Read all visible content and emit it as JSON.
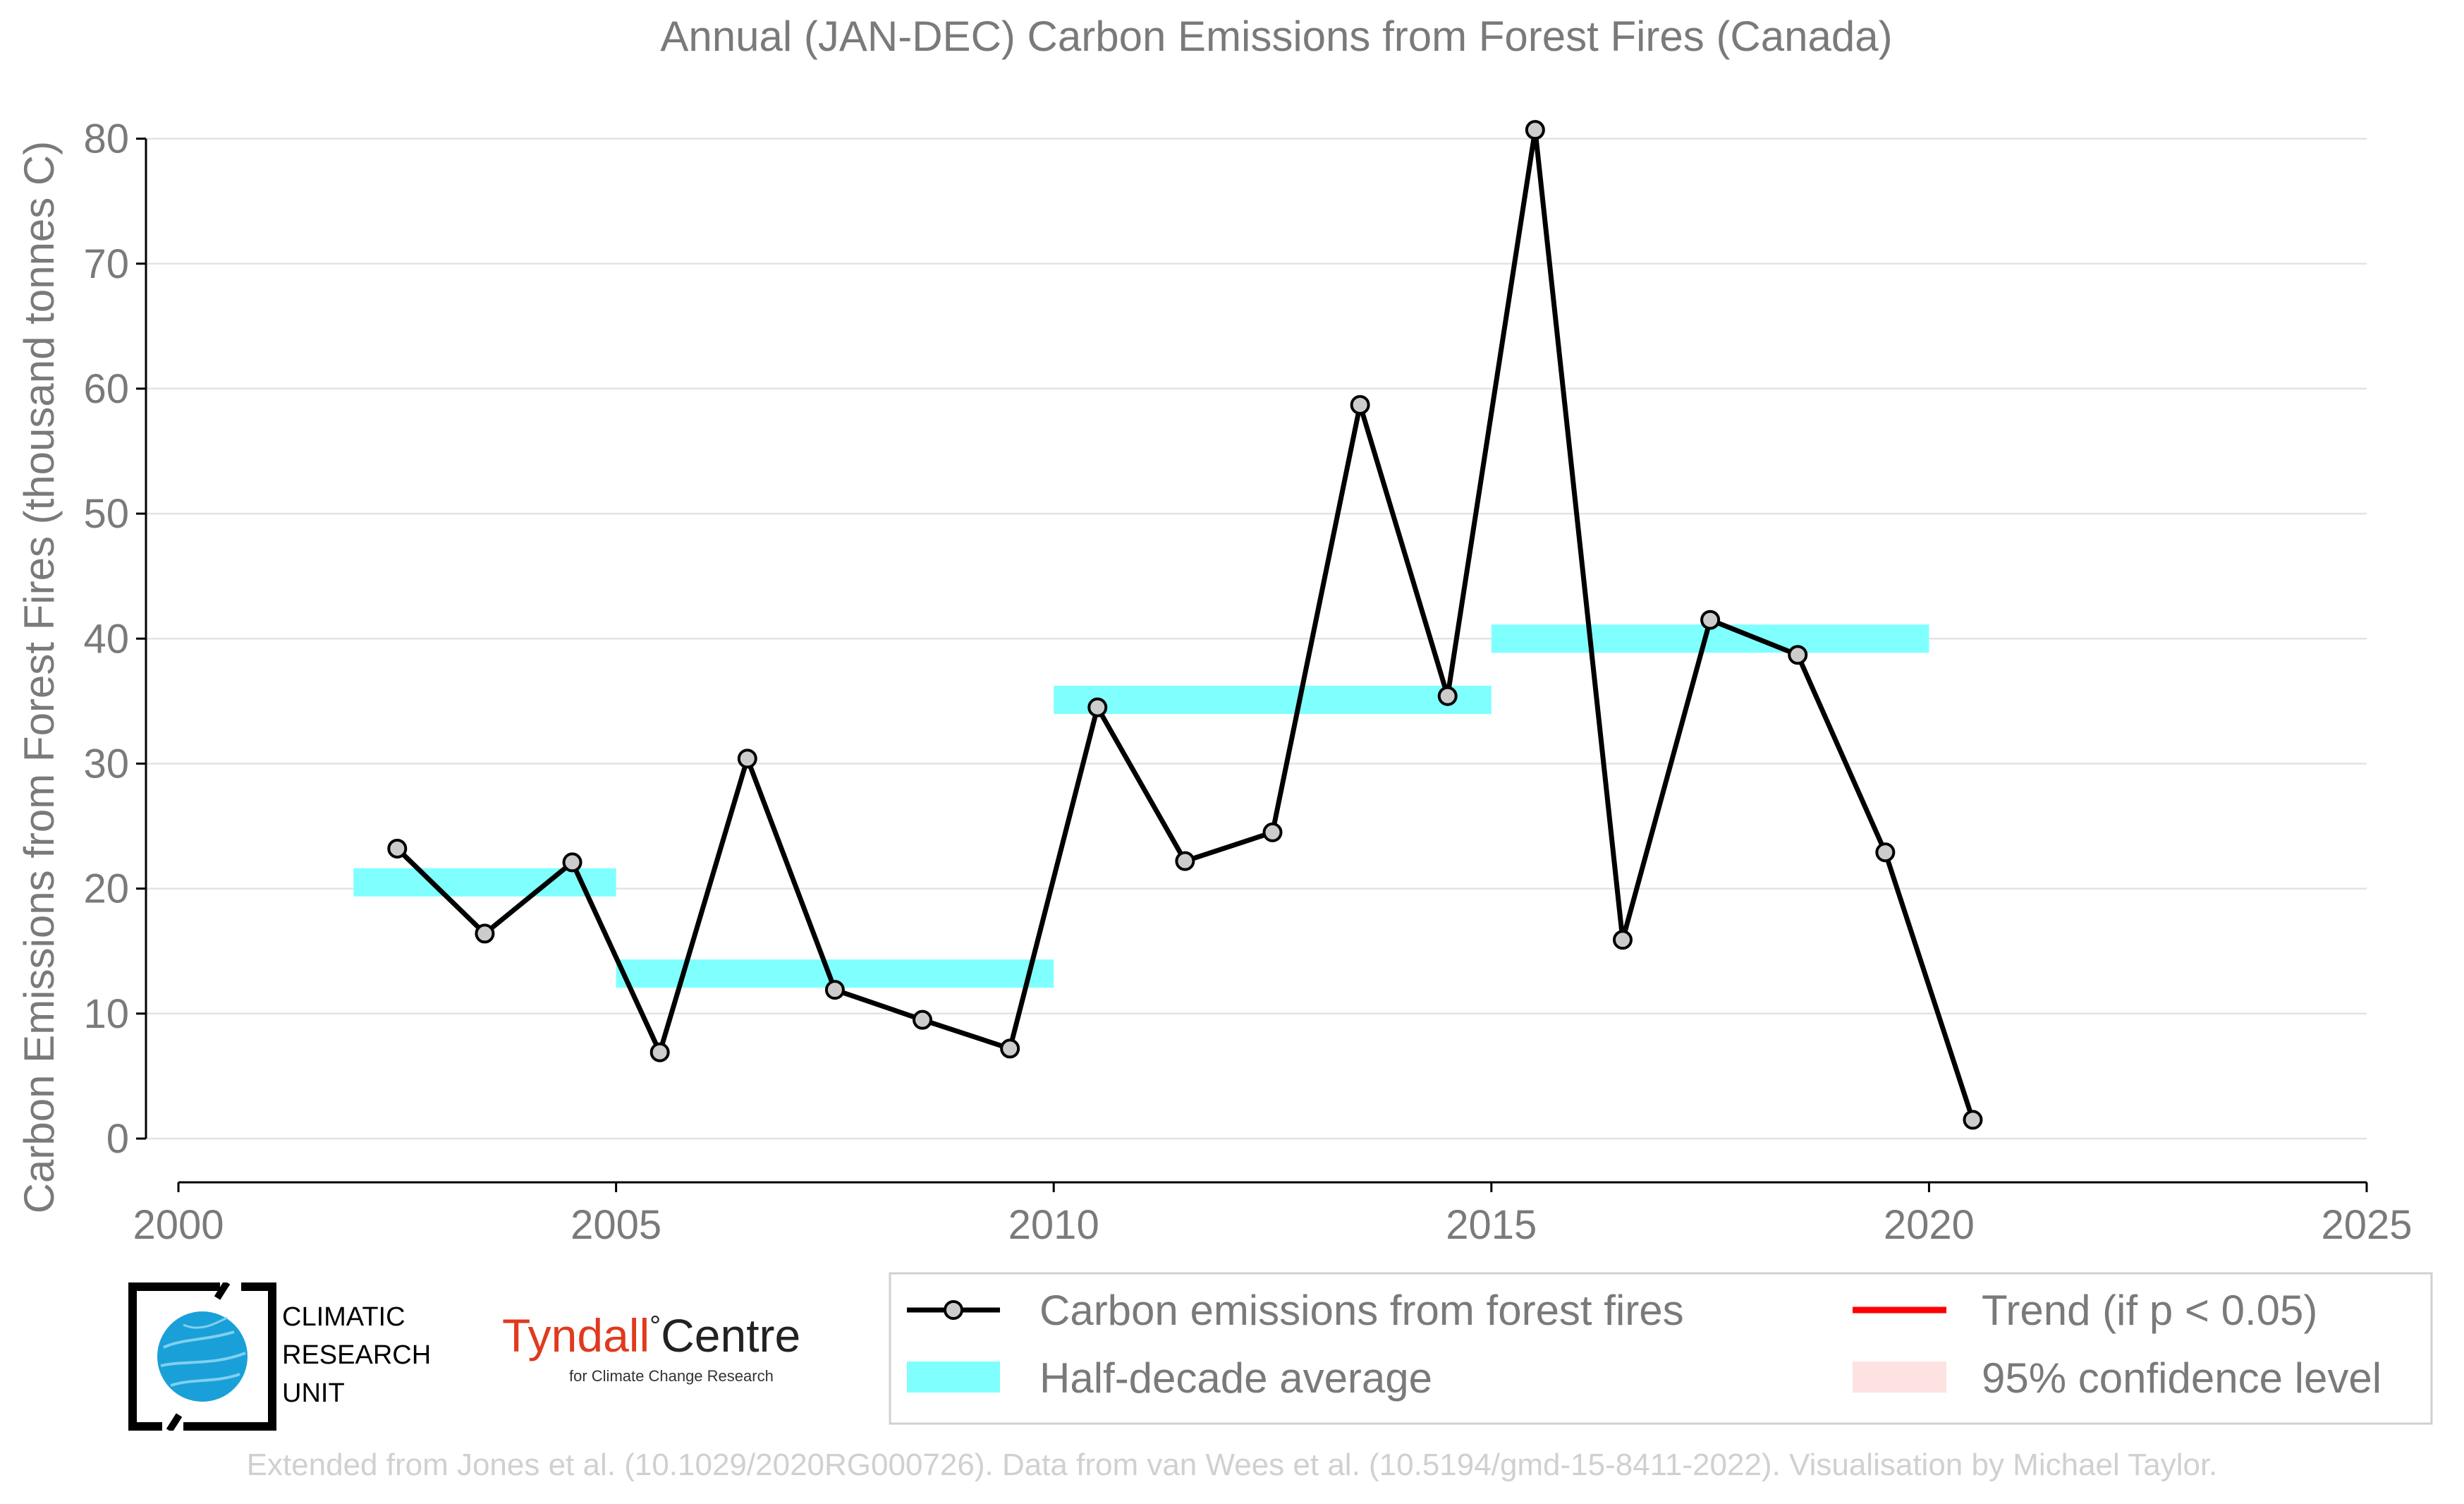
{
  "chart_data": {
    "type": "line",
    "title": "Annual (JAN-DEC) Carbon Emissions from Forest Fires (Canada)",
    "xlabel": "",
    "ylabel": "Carbon Emissions from Forest Fires (thousand tonnes C)",
    "xlim": [
      2000,
      2025
    ],
    "ylim": [
      -3.5,
      81.5
    ],
    "x_ticks": [
      2000,
      2005,
      2010,
      2015,
      2020,
      2025
    ],
    "y_ticks": [
      0,
      10,
      20,
      30,
      40,
      50,
      60,
      70,
      80
    ],
    "grid": true,
    "series": [
      {
        "name": "Carbon emissions from forest fires",
        "color": "#000000",
        "x": [
          2002.5,
          2003.5,
          2004.5,
          2005.5,
          2006.5,
          2007.5,
          2008.5,
          2009.5,
          2010.5,
          2011.5,
          2012.5,
          2013.5,
          2014.5,
          2015.5,
          2016.5,
          2017.5,
          2018.5,
          2019.5,
          2020.5
        ],
        "values": [
          23.2,
          16.4,
          22.1,
          6.9,
          30.4,
          11.9,
          9.5,
          7.2,
          34.5,
          22.2,
          24.5,
          58.7,
          35.4,
          80.7,
          15.9,
          41.5,
          38.7,
          22.9,
          1.5
        ]
      }
    ],
    "half_decade_averages": [
      {
        "start": 2002,
        "end": 2005,
        "value": 20.5
      },
      {
        "start": 2005,
        "end": 2010,
        "value": 13.2
      },
      {
        "start": 2010,
        "end": 2015,
        "value": 35.1
      },
      {
        "start": 2015,
        "end": 2020,
        "value": 40.0
      }
    ],
    "legend": {
      "placement": "bottom-right",
      "entries": [
        {
          "label": "Carbon emissions from forest fires",
          "kind": "line-marker",
          "color": "#000000"
        },
        {
          "label": "Trend (if p < 0.05)",
          "kind": "line",
          "color": "#ff0000"
        },
        {
          "label": "Half-decade average",
          "kind": "band",
          "color": "#80ffff"
        },
        {
          "label": "95% confidence level",
          "kind": "band",
          "color": "#fde2e2"
        }
      ]
    },
    "colors": {
      "text": "#7a7a7a",
      "band": "#80ffff",
      "marker_fill": "#cccccc"
    }
  },
  "logos": {
    "cru": {
      "line1": "CLIMATIC",
      "line2": "RESEARCH",
      "line3": "UNIT"
    },
    "tyndall": {
      "word1": "Tyndall",
      "degree": "°",
      "word2": "Centre",
      "subtitle": "for Climate Change Research"
    }
  },
  "footer": {
    "credit": "Extended from Jones et al. (10.1029/2020RG000726). Data from van Wees et al. (10.5194/gmd-15-8411-2022). Visualisation by Michael Taylor."
  }
}
